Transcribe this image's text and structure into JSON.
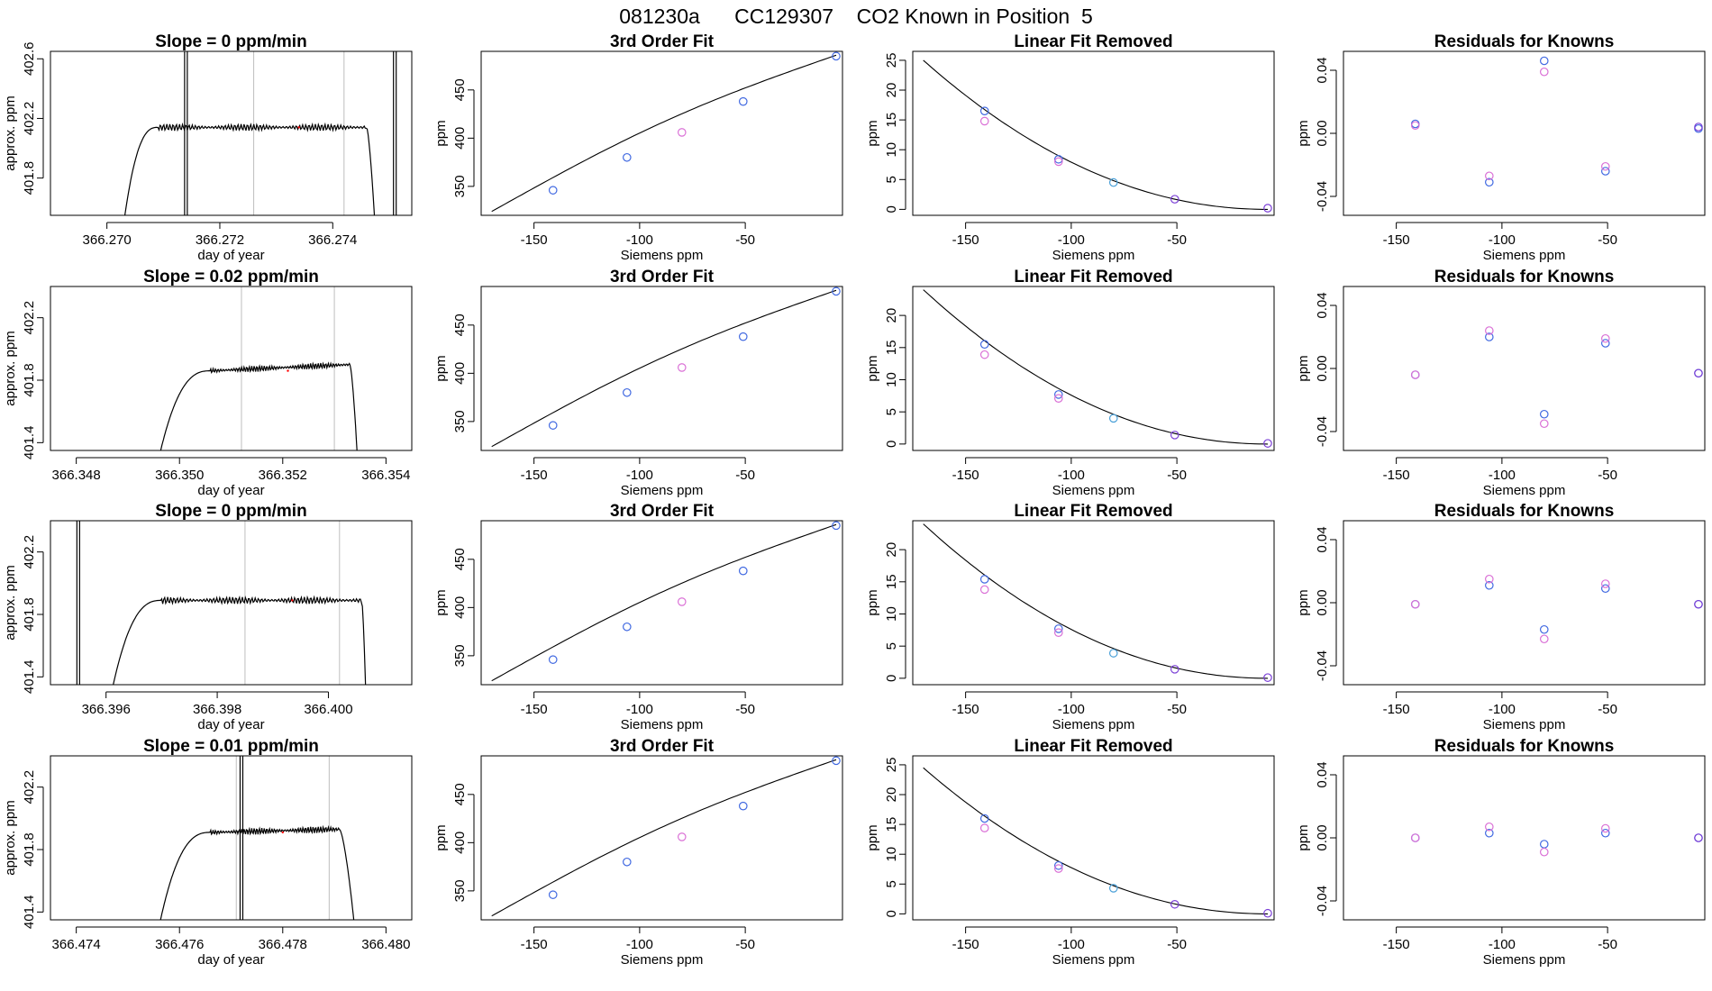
{
  "header": {
    "title": "081230a      CC129307    CO2 Known in Position  5"
  },
  "colors": {
    "line": "#000000",
    "grey": "#bebebe",
    "blue": "#4169e1",
    "magenta": "#da70d6",
    "purple": "#7b3fd6",
    "cyan": "#4aa0d8",
    "red": "#ff0000"
  },
  "chart_data": [
    {
      "type": "line",
      "row": 0,
      "title": "Slope =  0  ppm/min",
      "xlabel": "day of year",
      "ylabel": "approx. ppm",
      "xlim": [
        366.269,
        366.2754
      ],
      "xticks": [
        366.27,
        366.272,
        366.274
      ],
      "xtick_labels": [
        "366.270",
        "366.272",
        "366.274"
      ],
      "ylim": [
        401.55,
        402.65
      ],
      "yticks": [
        401.8,
        402.2,
        402.6
      ],
      "ytick_labels": [
        "401.8",
        "402.2",
        "402.6"
      ],
      "vlines": [
        366.2726,
        366.2742
      ],
      "trace": {
        "start": 366.2703,
        "rise_end": 366.2709,
        "plateau_end": 366.2746,
        "fall_end": 366.2748,
        "base": 401.5,
        "level": 402.14,
        "amp": 0.014
      },
      "spikes": [
        366.2714,
        366.2751
      ]
    },
    {
      "type": "scatter",
      "row": 0,
      "title": "3rd Order Fit",
      "xlabel": "Siemens ppm",
      "ylabel": "ppm",
      "xlim": [
        -175,
        -4
      ],
      "xticks": [
        -150,
        -100,
        -50
      ],
      "ylim": [
        320,
        490
      ],
      "yticks": [
        350,
        400,
        450
      ],
      "curve": {
        "x0": -170,
        "x1": -7,
        "y0": 324,
        "y1": 486,
        "bow": 3
      },
      "points": [
        {
          "x": -141,
          "y": 346,
          "c": "blue"
        },
        {
          "x": -106,
          "y": 380,
          "c": "blue"
        },
        {
          "x": -80,
          "y": 406,
          "c": "magenta"
        },
        {
          "x": -51,
          "y": 438,
          "c": "blue"
        },
        {
          "x": -7,
          "y": 485,
          "c": "blue"
        }
      ]
    },
    {
      "type": "scatter",
      "row": 0,
      "title": "Linear Fit Removed",
      "xlabel": "Siemens ppm",
      "ylabel": "ppm",
      "xlim": [
        -175,
        -4
      ],
      "xticks": [
        -150,
        -100,
        -50
      ],
      "ylim": [
        -1,
        26.5
      ],
      "yticks": [
        0,
        5,
        10,
        15,
        20,
        25
      ],
      "curve": {
        "x0": -170,
        "x1": -7,
        "y0": 25,
        "y1": 0
      },
      "points": [
        {
          "x": -141,
          "y": 16.5,
          "c": "blue"
        },
        {
          "x": -141,
          "y": 14.8,
          "c": "magenta"
        },
        {
          "x": -106,
          "y": 8.4,
          "c": "blue"
        },
        {
          "x": -106,
          "y": 8.0,
          "c": "magenta"
        },
        {
          "x": -80,
          "y": 4.5,
          "c": "cyan"
        },
        {
          "x": -51,
          "y": 1.7,
          "c": "purple"
        },
        {
          "x": -7,
          "y": 0.2,
          "c": "purple"
        }
      ]
    },
    {
      "type": "scatter",
      "row": 0,
      "title": "Residuals for Knowns",
      "xlabel": "Siemens ppm",
      "ylabel": "ppm",
      "xlim": [
        -175,
        -4
      ],
      "xticks": [
        -150,
        -100,
        -50
      ],
      "ylim": [
        -0.052,
        0.052
      ],
      "yticks": [
        -0.04,
        0.0,
        0.04
      ],
      "ytick_labels": [
        "-0.04",
        "0.00",
        "0.04"
      ],
      "points": [
        {
          "x": -141,
          "y": 0.006,
          "c": "blue"
        },
        {
          "x": -141,
          "y": 0.005,
          "c": "magenta"
        },
        {
          "x": -106,
          "y": -0.031,
          "c": "blue"
        },
        {
          "x": -106,
          "y": -0.027,
          "c": "magenta"
        },
        {
          "x": -80,
          "y": 0.046,
          "c": "blue"
        },
        {
          "x": -80,
          "y": 0.039,
          "c": "magenta"
        },
        {
          "x": -51,
          "y": -0.024,
          "c": "blue"
        },
        {
          "x": -51,
          "y": -0.021,
          "c": "magenta"
        },
        {
          "x": -7,
          "y": 0.003,
          "c": "blue"
        },
        {
          "x": -7,
          "y": 0.004,
          "c": "purple"
        }
      ]
    },
    {
      "type": "line",
      "row": 1,
      "title": "Slope =  0.02  ppm/min",
      "xlabel": "day of year",
      "ylabel": "approx. ppm",
      "xlim": [
        366.3475,
        366.3545
      ],
      "xticks": [
        366.348,
        366.35,
        366.352,
        366.354
      ],
      "xtick_labels": [
        "366.348",
        "366.350",
        "366.352",
        "366.354"
      ],
      "ylim": [
        401.35,
        402.4
      ],
      "yticks": [
        401.4,
        401.8,
        402.2
      ],
      "ytick_labels": [
        "401.4",
        "401.8",
        "402.2"
      ],
      "vlines": [
        366.3512,
        366.353
      ],
      "trace": {
        "start": 366.3496,
        "rise_end": 366.3506,
        "plateau_end": 366.3533,
        "fall_end": 366.3535,
        "base": 401.3,
        "level": 401.86,
        "amp": 0.012,
        "slope": 0.04
      },
      "spikes": []
    },
    {
      "type": "scatter",
      "row": 1,
      "title": "3rd Order Fit",
      "xlabel": "Siemens ppm",
      "ylabel": "ppm",
      "xlim": [
        -175,
        -4
      ],
      "xticks": [
        -150,
        -100,
        -50
      ],
      "ylim": [
        320,
        490
      ],
      "yticks": [
        350,
        400,
        450
      ],
      "curve": {
        "x0": -170,
        "x1": -7,
        "y0": 324,
        "y1": 486,
        "bow": 3
      },
      "points": [
        {
          "x": -141,
          "y": 346,
          "c": "blue"
        },
        {
          "x": -106,
          "y": 380,
          "c": "blue"
        },
        {
          "x": -80,
          "y": 406,
          "c": "magenta"
        },
        {
          "x": -51,
          "y": 438,
          "c": "blue"
        },
        {
          "x": -7,
          "y": 485,
          "c": "blue"
        }
      ]
    },
    {
      "type": "scatter",
      "row": 1,
      "title": "Linear Fit Removed",
      "xlabel": "Siemens ppm",
      "ylabel": "ppm",
      "xlim": [
        -175,
        -4
      ],
      "xticks": [
        -150,
        -100,
        -50
      ],
      "ylim": [
        -1,
        24.5
      ],
      "yticks": [
        0,
        5,
        10,
        15,
        20
      ],
      "curve": {
        "x0": -170,
        "x1": -7,
        "y0": 24,
        "y1": 0
      },
      "points": [
        {
          "x": -141,
          "y": 15.5,
          "c": "blue"
        },
        {
          "x": -141,
          "y": 13.9,
          "c": "magenta"
        },
        {
          "x": -106,
          "y": 7.7,
          "c": "blue"
        },
        {
          "x": -106,
          "y": 7.1,
          "c": "magenta"
        },
        {
          "x": -80,
          "y": 4.0,
          "c": "cyan"
        },
        {
          "x": -51,
          "y": 1.4,
          "c": "purple"
        },
        {
          "x": -7,
          "y": 0.1,
          "c": "purple"
        }
      ]
    },
    {
      "type": "scatter",
      "row": 1,
      "title": "Residuals for Knowns",
      "xlabel": "Siemens ppm",
      "ylabel": "ppm",
      "xlim": [
        -175,
        -4
      ],
      "xticks": [
        -150,
        -100,
        -50
      ],
      "ylim": [
        -0.052,
        0.052
      ],
      "yticks": [
        -0.04,
        0.0,
        0.04
      ],
      "ytick_labels": [
        "-0.04",
        "0.00",
        "0.04"
      ],
      "points": [
        {
          "x": -141,
          "y": -0.004,
          "c": "blue"
        },
        {
          "x": -141,
          "y": -0.004,
          "c": "magenta"
        },
        {
          "x": -106,
          "y": 0.02,
          "c": "blue"
        },
        {
          "x": -106,
          "y": 0.024,
          "c": "magenta"
        },
        {
          "x": -80,
          "y": -0.029,
          "c": "blue"
        },
        {
          "x": -80,
          "y": -0.035,
          "c": "magenta"
        },
        {
          "x": -51,
          "y": 0.016,
          "c": "blue"
        },
        {
          "x": -51,
          "y": 0.019,
          "c": "magenta"
        },
        {
          "x": -7,
          "y": -0.003,
          "c": "blue"
        },
        {
          "x": -7,
          "y": -0.003,
          "c": "purple"
        }
      ]
    },
    {
      "type": "line",
      "row": 2,
      "title": "Slope =  0  ppm/min",
      "xlabel": "day of year",
      "ylabel": "approx. ppm",
      "xlim": [
        366.395,
        366.4015
      ],
      "xticks": [
        366.396,
        366.398,
        366.4
      ],
      "xtick_labels": [
        "366.396",
        "366.398",
        "366.400"
      ],
      "ylim": [
        401.35,
        402.4
      ],
      "yticks": [
        401.4,
        401.8,
        402.2
      ],
      "ytick_labels": [
        "401.4",
        "401.8",
        "402.2"
      ],
      "vlines": [
        366.3985,
        366.4002
      ],
      "trace": {
        "start": 366.3961,
        "rise_end": 366.397,
        "plateau_end": 366.4006,
        "fall_end": 366.4007,
        "base": 401.3,
        "level": 401.89,
        "amp": 0.014
      },
      "spikes": [
        366.3955
      ]
    },
    {
      "type": "scatter",
      "row": 2,
      "title": "3rd Order Fit",
      "xlabel": "Siemens ppm",
      "ylabel": "ppm",
      "xlim": [
        -175,
        -4
      ],
      "xticks": [
        -150,
        -100,
        -50
      ],
      "ylim": [
        320,
        490
      ],
      "yticks": [
        350,
        400,
        450
      ],
      "curve": {
        "x0": -170,
        "x1": -7,
        "y0": 324,
        "y1": 486,
        "bow": 3
      },
      "points": [
        {
          "x": -141,
          "y": 346,
          "c": "blue"
        },
        {
          "x": -106,
          "y": 380,
          "c": "blue"
        },
        {
          "x": -80,
          "y": 406,
          "c": "magenta"
        },
        {
          "x": -51,
          "y": 438,
          "c": "blue"
        },
        {
          "x": -7,
          "y": 485,
          "c": "blue"
        }
      ]
    },
    {
      "type": "scatter",
      "row": 2,
      "title": "Linear Fit Removed",
      "xlabel": "Siemens ppm",
      "ylabel": "ppm",
      "xlim": [
        -175,
        -4
      ],
      "xticks": [
        -150,
        -100,
        -50
      ],
      "ylim": [
        -1,
        24.5
      ],
      "yticks": [
        0,
        5,
        10,
        15,
        20
      ],
      "curve": {
        "x0": -170,
        "x1": -7,
        "y0": 24,
        "y1": 0
      },
      "points": [
        {
          "x": -141,
          "y": 15.4,
          "c": "blue"
        },
        {
          "x": -141,
          "y": 13.8,
          "c": "magenta"
        },
        {
          "x": -106,
          "y": 7.7,
          "c": "blue"
        },
        {
          "x": -106,
          "y": 7.1,
          "c": "magenta"
        },
        {
          "x": -80,
          "y": 3.9,
          "c": "cyan"
        },
        {
          "x": -51,
          "y": 1.4,
          "c": "purple"
        },
        {
          "x": -7,
          "y": 0.1,
          "c": "purple"
        }
      ]
    },
    {
      "type": "scatter",
      "row": 2,
      "title": "Residuals for Knowns",
      "xlabel": "Siemens ppm",
      "ylabel": "ppm",
      "xlim": [
        -175,
        -4
      ],
      "xticks": [
        -150,
        -100,
        -50
      ],
      "ylim": [
        -0.052,
        0.052
      ],
      "yticks": [
        -0.04,
        0.0,
        0.04
      ],
      "ytick_labels": [
        "-0.04",
        "0.00",
        "0.04"
      ],
      "points": [
        {
          "x": -141,
          "y": -0.001,
          "c": "blue"
        },
        {
          "x": -141,
          "y": -0.001,
          "c": "magenta"
        },
        {
          "x": -106,
          "y": 0.011,
          "c": "blue"
        },
        {
          "x": -106,
          "y": 0.015,
          "c": "magenta"
        },
        {
          "x": -80,
          "y": -0.017,
          "c": "blue"
        },
        {
          "x": -80,
          "y": -0.023,
          "c": "magenta"
        },
        {
          "x": -51,
          "y": 0.009,
          "c": "blue"
        },
        {
          "x": -51,
          "y": 0.012,
          "c": "magenta"
        },
        {
          "x": -7,
          "y": -0.001,
          "c": "blue"
        },
        {
          "x": -7,
          "y": -0.001,
          "c": "purple"
        }
      ]
    },
    {
      "type": "line",
      "row": 3,
      "title": "Slope =  0.01  ppm/min",
      "xlabel": "day of year",
      "ylabel": "approx. ppm",
      "xlim": [
        366.4735,
        366.4805
      ],
      "xticks": [
        366.474,
        366.476,
        366.478,
        366.48
      ],
      "xtick_labels": [
        "366.474",
        "366.476",
        "366.478",
        "366.480"
      ],
      "ylim": [
        401.35,
        402.4
      ],
      "yticks": [
        401.4,
        401.8,
        402.2
      ],
      "ytick_labels": [
        "401.4",
        "401.8",
        "402.2"
      ],
      "vlines": [
        366.4771,
        366.4789
      ],
      "trace": {
        "start": 366.4756,
        "rise_end": 366.4766,
        "plateau_end": 366.4791,
        "fall_end": 366.4795,
        "base": 401.3,
        "level": 401.91,
        "amp": 0.013,
        "slope": 0.02
      },
      "spikes": [
        366.4772
      ]
    },
    {
      "type": "scatter",
      "row": 3,
      "title": "3rd Order Fit",
      "xlabel": "Siemens ppm",
      "ylabel": "ppm",
      "xlim": [
        -175,
        -4
      ],
      "xticks": [
        -150,
        -100,
        -50
      ],
      "ylim": [
        320,
        490
      ],
      "yticks": [
        350,
        400,
        450
      ],
      "curve": {
        "x0": -170,
        "x1": -7,
        "y0": 324,
        "y1": 486,
        "bow": 3
      },
      "points": [
        {
          "x": -141,
          "y": 346,
          "c": "blue"
        },
        {
          "x": -106,
          "y": 380,
          "c": "blue"
        },
        {
          "x": -80,
          "y": 406,
          "c": "magenta"
        },
        {
          "x": -51,
          "y": 438,
          "c": "blue"
        },
        {
          "x": -7,
          "y": 485,
          "c": "blue"
        }
      ]
    },
    {
      "type": "scatter",
      "row": 3,
      "title": "Linear Fit Removed",
      "xlabel": "Siemens ppm",
      "ylabel": "ppm",
      "xlim": [
        -175,
        -4
      ],
      "xticks": [
        -150,
        -100,
        -50
      ],
      "ylim": [
        -1,
        26.5
      ],
      "yticks": [
        0,
        5,
        10,
        15,
        20,
        25
      ],
      "curve": {
        "x0": -170,
        "x1": -7,
        "y0": 24.5,
        "y1": 0
      },
      "points": [
        {
          "x": -141,
          "y": 16.0,
          "c": "blue"
        },
        {
          "x": -141,
          "y": 14.4,
          "c": "magenta"
        },
        {
          "x": -106,
          "y": 8.1,
          "c": "blue"
        },
        {
          "x": -106,
          "y": 7.6,
          "c": "magenta"
        },
        {
          "x": -80,
          "y": 4.3,
          "c": "cyan"
        },
        {
          "x": -51,
          "y": 1.6,
          "c": "purple"
        },
        {
          "x": -7,
          "y": 0.1,
          "c": "purple"
        }
      ]
    },
    {
      "type": "scatter",
      "row": 3,
      "title": "Residuals for Knowns",
      "xlabel": "Siemens ppm",
      "ylabel": "ppm",
      "xlim": [
        -175,
        -4
      ],
      "xticks": [
        -150,
        -100,
        -50
      ],
      "ylim": [
        -0.052,
        0.052
      ],
      "yticks": [
        -0.04,
        0.0,
        0.04
      ],
      "ytick_labels": [
        "-0.04",
        "0.00",
        "0.04"
      ],
      "points": [
        {
          "x": -141,
          "y": 0.0,
          "c": "blue"
        },
        {
          "x": -141,
          "y": 0.0,
          "c": "magenta"
        },
        {
          "x": -106,
          "y": 0.003,
          "c": "blue"
        },
        {
          "x": -106,
          "y": 0.007,
          "c": "magenta"
        },
        {
          "x": -80,
          "y": -0.004,
          "c": "blue"
        },
        {
          "x": -80,
          "y": -0.009,
          "c": "magenta"
        },
        {
          "x": -51,
          "y": 0.003,
          "c": "blue"
        },
        {
          "x": -51,
          "y": 0.006,
          "c": "magenta"
        },
        {
          "x": -7,
          "y": 0.0,
          "c": "blue"
        },
        {
          "x": -7,
          "y": 0.0,
          "c": "purple"
        }
      ]
    }
  ]
}
